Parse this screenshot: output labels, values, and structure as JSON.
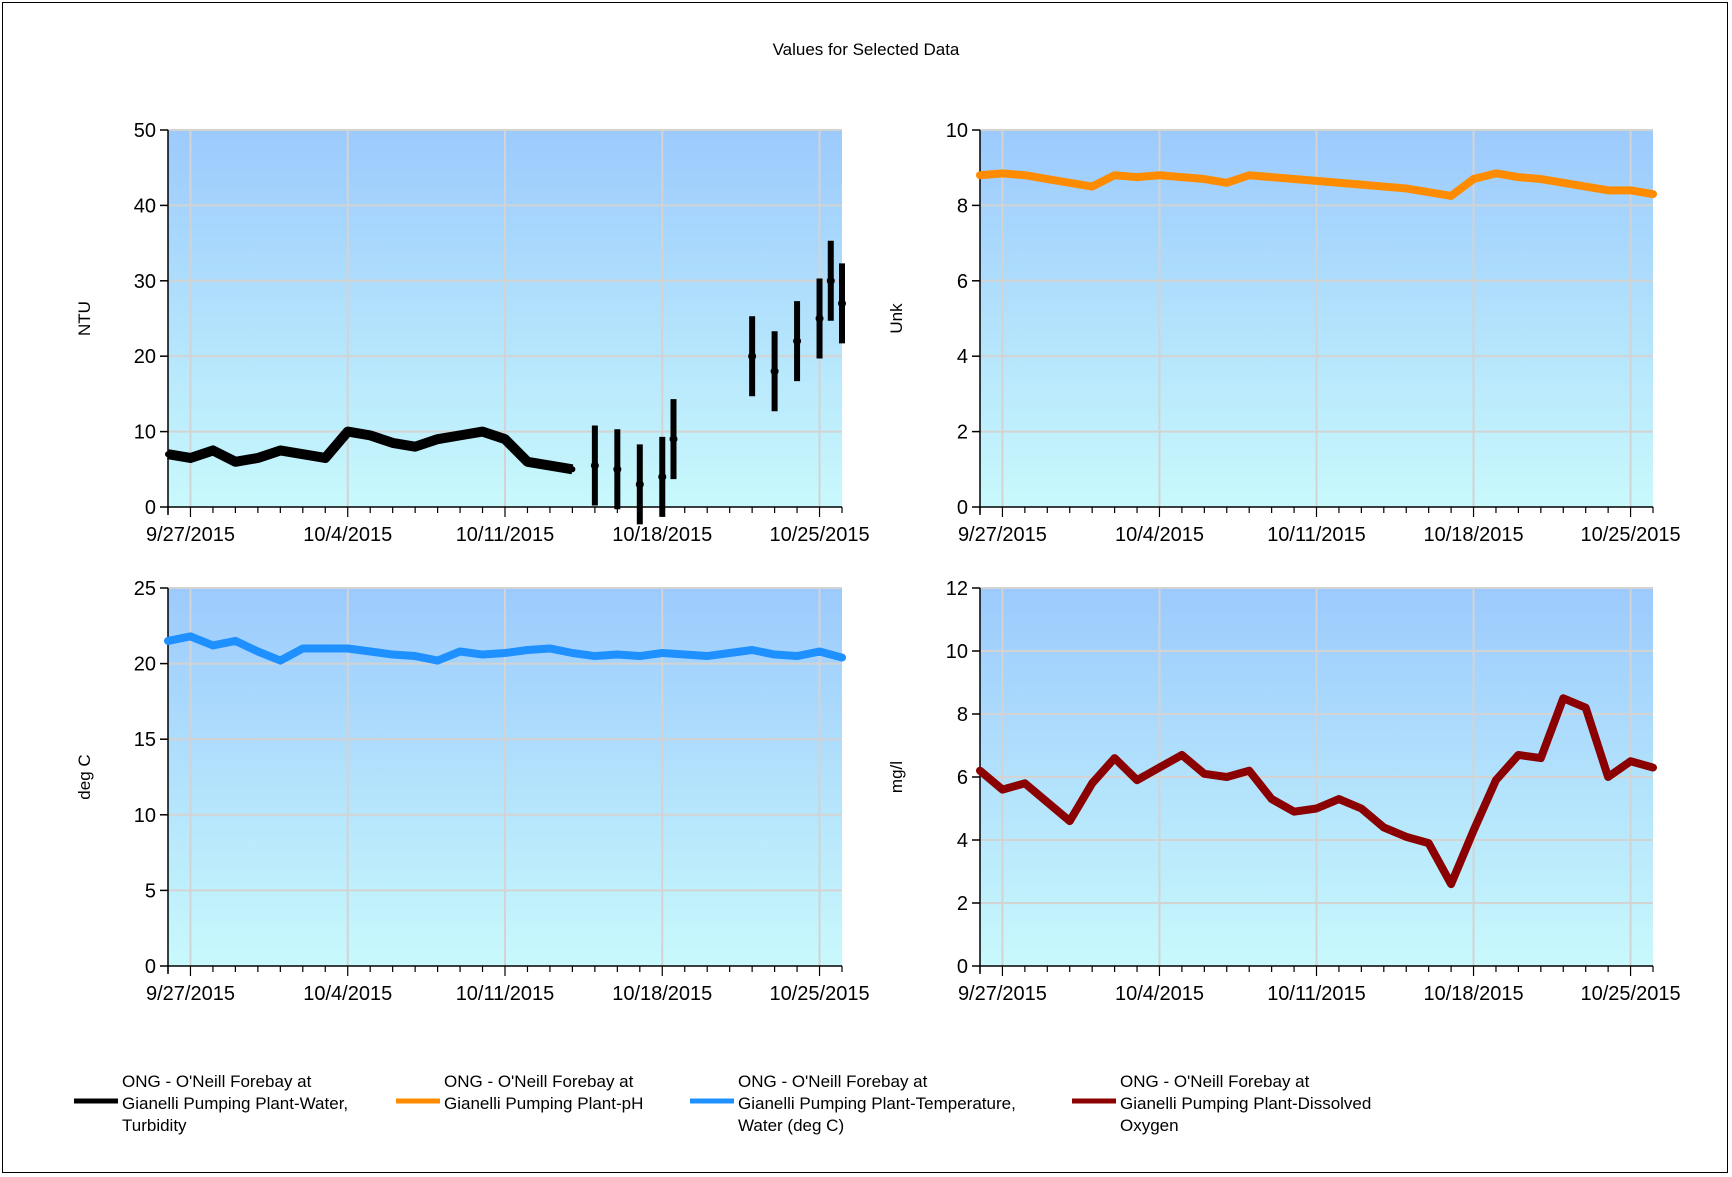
{
  "title": "Values for Selected Data",
  "chart_data": [
    {
      "type": "scatter",
      "ylabel": "NTU",
      "ylim": [
        0,
        50
      ],
      "yticks": [
        0,
        10,
        20,
        30,
        40,
        50
      ],
      "xlim": [
        "2015-09-26",
        "2015-10-26"
      ],
      "xticks": [
        "9/27/2015",
        "10/4/2015",
        "10/11/2015",
        "10/18/2015",
        "10/25/2015"
      ],
      "color": "#000000",
      "series_name": "ONG - O'Neill Forebay at Gianelli Pumping Plant-Water, Turbidity",
      "points": [
        [
          "9/26",
          7
        ],
        [
          "9/27",
          6.5
        ],
        [
          "9/28",
          7.5
        ],
        [
          "9/29",
          6
        ],
        [
          "9/30",
          6.5
        ],
        [
          "10/1",
          7.5
        ],
        [
          "10/2",
          7
        ],
        [
          "10/3",
          6.5
        ],
        [
          "10/4",
          10
        ],
        [
          "10/5",
          9.5
        ],
        [
          "10/6",
          8.5
        ],
        [
          "10/7",
          8
        ],
        [
          "10/8",
          9
        ],
        [
          "10/9",
          9.5
        ],
        [
          "10/10",
          10
        ],
        [
          "10/11",
          9
        ],
        [
          "10/12",
          6
        ],
        [
          "10/13",
          5.5
        ],
        [
          "10/14",
          5
        ],
        [
          "10/15",
          5.5
        ],
        [
          "10/16",
          5
        ],
        [
          "10/17",
          3
        ],
        [
          "10/18",
          4
        ],
        [
          "10/18.5",
          9
        ],
        [
          "10/22",
          20
        ],
        [
          "10/23",
          18
        ],
        [
          "10/24",
          22
        ],
        [
          "10/25",
          25
        ],
        [
          "10/25.5",
          30
        ],
        [
          "10/26",
          27
        ]
      ]
    },
    {
      "type": "line",
      "ylabel": "Unk",
      "ylim": [
        0,
        10
      ],
      "yticks": [
        0,
        2,
        4,
        6,
        8,
        10
      ],
      "xlim": [
        "2015-09-26",
        "2015-10-26"
      ],
      "xticks": [
        "9/27/2015",
        "10/4/2015",
        "10/11/2015",
        "10/18/2015",
        "10/25/2015"
      ],
      "color": "#ff8c00",
      "series_name": "ONG - O'Neill Forebay at Gianelli Pumping Plant-pH",
      "points": [
        [
          "9/26",
          8.8
        ],
        [
          "9/27",
          8.85
        ],
        [
          "9/28",
          8.8
        ],
        [
          "9/29",
          8.7
        ],
        [
          "9/30",
          8.6
        ],
        [
          "10/1",
          8.5
        ],
        [
          "10/2",
          8.8
        ],
        [
          "10/3",
          8.75
        ],
        [
          "10/4",
          8.8
        ],
        [
          "10/5",
          8.75
        ],
        [
          "10/6",
          8.7
        ],
        [
          "10/7",
          8.6
        ],
        [
          "10/8",
          8.8
        ],
        [
          "10/9",
          8.75
        ],
        [
          "10/10",
          8.7
        ],
        [
          "10/11",
          8.65
        ],
        [
          "10/12",
          8.6
        ],
        [
          "10/13",
          8.55
        ],
        [
          "10/14",
          8.5
        ],
        [
          "10/15",
          8.45
        ],
        [
          "10/16",
          8.35
        ],
        [
          "10/17",
          8.25
        ],
        [
          "10/18",
          8.7
        ],
        [
          "10/19",
          8.85
        ],
        [
          "10/20",
          8.75
        ],
        [
          "10/21",
          8.7
        ],
        [
          "10/22",
          8.6
        ],
        [
          "10/23",
          8.5
        ],
        [
          "10/24",
          8.4
        ],
        [
          "10/25",
          8.4
        ],
        [
          "10/26",
          8.3
        ]
      ]
    },
    {
      "type": "line",
      "ylabel": "deg C",
      "ylim": [
        0,
        25
      ],
      "yticks": [
        0,
        5,
        10,
        15,
        20,
        25
      ],
      "xlim": [
        "2015-09-26",
        "2015-10-26"
      ],
      "xticks": [
        "9/27/2015",
        "10/4/2015",
        "10/11/2015",
        "10/18/2015",
        "10/25/2015"
      ],
      "color": "#1e90ff",
      "series_name": "ONG - O'Neill Forebay at Gianelli Pumping Plant-Temperature, Water (deg C)",
      "points": [
        [
          "9/26",
          21.5
        ],
        [
          "9/27",
          21.8
        ],
        [
          "9/28",
          21.2
        ],
        [
          "9/29",
          21.5
        ],
        [
          "9/30",
          20.8
        ],
        [
          "10/1",
          20.2
        ],
        [
          "10/2",
          21
        ],
        [
          "10/3",
          21
        ],
        [
          "10/4",
          21
        ],
        [
          "10/5",
          20.8
        ],
        [
          "10/6",
          20.6
        ],
        [
          "10/7",
          20.5
        ],
        [
          "10/8",
          20.2
        ],
        [
          "10/9",
          20.8
        ],
        [
          "10/10",
          20.6
        ],
        [
          "10/11",
          20.7
        ],
        [
          "10/12",
          20.9
        ],
        [
          "10/13",
          21
        ],
        [
          "10/14",
          20.7
        ],
        [
          "10/15",
          20.5
        ],
        [
          "10/16",
          20.6
        ],
        [
          "10/17",
          20.5
        ],
        [
          "10/18",
          20.7
        ],
        [
          "10/19",
          20.6
        ],
        [
          "10/20",
          20.5
        ],
        [
          "10/21",
          20.7
        ],
        [
          "10/22",
          20.9
        ],
        [
          "10/23",
          20.6
        ],
        [
          "10/24",
          20.5
        ],
        [
          "10/25",
          20.8
        ],
        [
          "10/26",
          20.4
        ]
      ]
    },
    {
      "type": "line",
      "ylabel": "mg/l",
      "ylim": [
        0,
        12
      ],
      "yticks": [
        0,
        2,
        4,
        6,
        8,
        10,
        12
      ],
      "xlim": [
        "2015-09-26",
        "2015-10-26"
      ],
      "xticks": [
        "9/27/2015",
        "10/4/2015",
        "10/11/2015",
        "10/18/2015",
        "10/25/2015"
      ],
      "color": "#8b0000",
      "series_name": "ONG - O'Neill Forebay at Gianelli Pumping Plant-Dissolved Oxygen",
      "points": [
        [
          "9/26",
          6.2
        ],
        [
          "9/27",
          5.6
        ],
        [
          "9/28",
          5.8
        ],
        [
          "9/29",
          5.2
        ],
        [
          "9/30",
          4.6
        ],
        [
          "10/1",
          5.8
        ],
        [
          "10/2",
          6.6
        ],
        [
          "10/3",
          5.9
        ],
        [
          "10/4",
          6.3
        ],
        [
          "10/5",
          6.7
        ],
        [
          "10/6",
          6.1
        ],
        [
          "10/7",
          6.0
        ],
        [
          "10/8",
          6.2
        ],
        [
          "10/9",
          5.3
        ],
        [
          "10/10",
          4.9
        ],
        [
          "10/11",
          5.0
        ],
        [
          "10/12",
          5.3
        ],
        [
          "10/13",
          5.0
        ],
        [
          "10/14",
          4.4
        ],
        [
          "10/15",
          4.1
        ],
        [
          "10/16",
          3.9
        ],
        [
          "10/17",
          2.6
        ],
        [
          "10/18",
          4.3
        ],
        [
          "10/19",
          5.9
        ],
        [
          "10/20",
          6.7
        ],
        [
          "10/21",
          6.6
        ],
        [
          "10/22",
          8.5
        ],
        [
          "10/23",
          8.2
        ],
        [
          "10/24",
          6.0
        ],
        [
          "10/25",
          6.5
        ],
        [
          "10/26",
          6.3
        ]
      ]
    }
  ],
  "legend": [
    {
      "label_lines": [
        "ONG - O'Neill Forebay at",
        "Gianelli Pumping Plant-Water,",
        "Turbidity"
      ],
      "color": "#000000"
    },
    {
      "label_lines": [
        "ONG - O'Neill Forebay at",
        "Gianelli Pumping Plant-pH"
      ],
      "color": "#ff8c00"
    },
    {
      "label_lines": [
        "ONG - O'Neill Forebay at",
        "Gianelli Pumping Plant-Temperature,",
        "Water (deg C)"
      ],
      "color": "#1e90ff"
    },
    {
      "label_lines": [
        "ONG - O'Neill Forebay at",
        "Gianelli Pumping Plant-Dissolved",
        "Oxygen"
      ],
      "color": "#8b0000"
    }
  ]
}
